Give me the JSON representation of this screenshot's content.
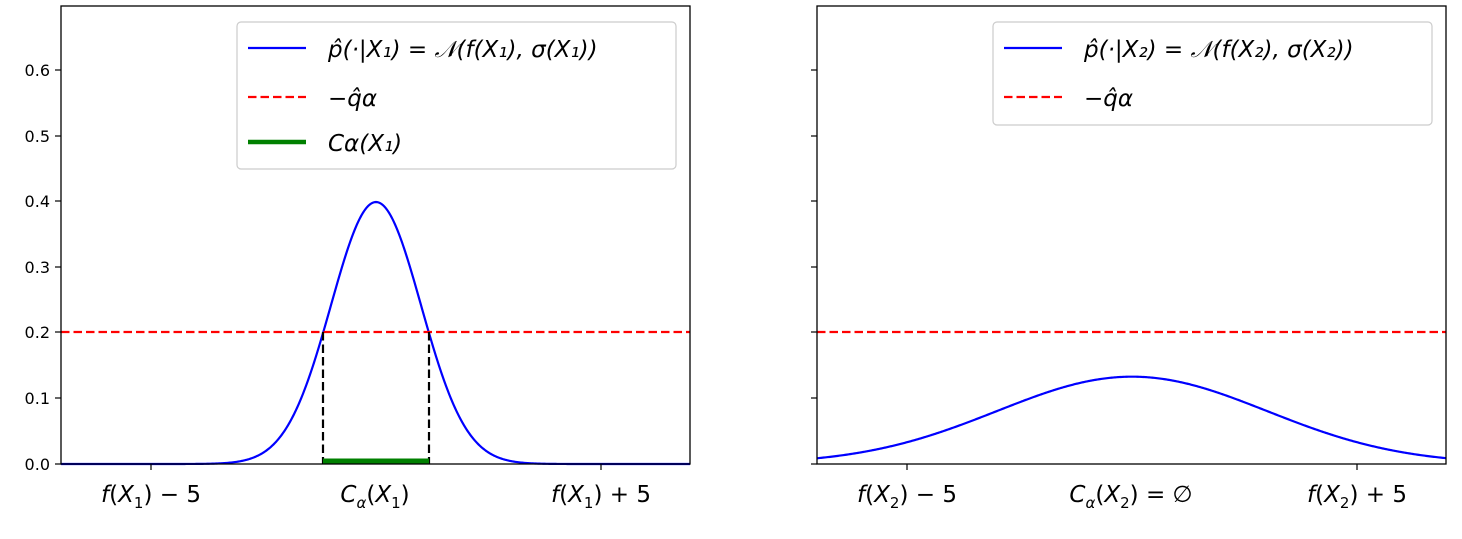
{
  "chart_data": [
    {
      "type": "line",
      "panel": "left",
      "title": "",
      "xlabel": "",
      "ylabel": "",
      "x_range": [
        -7,
        7
      ],
      "ylim": [
        0,
        0.7
      ],
      "y_ticks": [
        "0.0",
        "0.1",
        "0.2",
        "0.3",
        "0.4",
        "0.5",
        "0.6"
      ],
      "x_ticks": [
        {
          "pos": -5,
          "label": "f(X₁) − 5"
        },
        {
          "pos": 0,
          "label": "Cα(X₁)"
        },
        {
          "pos": 5,
          "label": "f(X₁) + 5"
        }
      ],
      "grid": false,
      "legend_position": "upper right",
      "series": [
        {
          "name": "p̂(·|X₁) = 𝒩(f(X₁), σ(X₁))",
          "color": "#0000ff",
          "style": "solid",
          "kind": "gaussian_pdf",
          "mean": 0,
          "sigma": 1,
          "peak": 0.399
        },
        {
          "name": "−q̂α",
          "color": "#ff0000",
          "style": "dashed",
          "kind": "hline",
          "y": 0.2
        },
        {
          "name": "Cα(X₁)",
          "color": "#008000",
          "style": "solid-thick",
          "kind": "interval",
          "x": [
            -1.177,
            1.177
          ],
          "y": 0.0
        },
        {
          "name": "cutoff markers",
          "color": "#000000",
          "style": "dashed",
          "kind": "vlines",
          "x": [
            -1.177,
            1.177
          ],
          "y_range": [
            0,
            0.2
          ]
        }
      ]
    },
    {
      "type": "line",
      "panel": "right",
      "title": "",
      "xlabel": "",
      "ylabel": "",
      "x_range": [
        -7,
        7
      ],
      "ylim": [
        0,
        0.7
      ],
      "y_ticks": [
        "",
        "",
        "",
        "",
        "",
        "",
        ""
      ],
      "shared_y": true,
      "x_ticks": [
        {
          "pos": -5,
          "label": "f(X₂) − 5"
        },
        {
          "pos": 0,
          "label": "Cα(X₂) = ∅"
        },
        {
          "pos": 5,
          "label": "f(X₂) + 5"
        }
      ],
      "grid": false,
      "legend_position": "upper right",
      "series": [
        {
          "name": "p̂(·|X₂) = 𝒩(f(X₂), σ(X₂))",
          "color": "#0000ff",
          "style": "solid",
          "kind": "gaussian_pdf",
          "mean": 0,
          "sigma": 3,
          "peak": 0.133
        },
        {
          "name": "−q̂α",
          "color": "#ff0000",
          "style": "dashed",
          "kind": "hline",
          "y": 0.2
        }
      ]
    }
  ],
  "left": {
    "y_ticks": [
      "0.0",
      "0.1",
      "0.2",
      "0.3",
      "0.4",
      "0.5",
      "0.6"
    ],
    "x_tick_labels": {
      "minus": {
        "f": "f",
        "X": "X",
        "sub": "1",
        "tail": ") − 5"
      },
      "center": {
        "C": "C",
        "alpha": "α",
        "X": "X",
        "sub": "1"
      },
      "plus": {
        "f": "f",
        "X": "X",
        "sub": "1",
        "tail": ") + 5"
      }
    },
    "legend": {
      "items": [
        {
          "label": "p̂(·|X₁) = 𝒩(f(X₁), σ(X₁))",
          "color": "#0000ff"
        },
        {
          "label": "−q̂α",
          "color": "#ff0000"
        },
        {
          "label": "Cα(X₁)",
          "color": "#008000"
        }
      ]
    }
  },
  "right": {
    "x_tick_labels": {
      "minus": {
        "f": "f",
        "X": "X",
        "sub": "2",
        "tail": ") − 5"
      },
      "center": {
        "C": "C",
        "alpha": "α",
        "X": "X",
        "sub": "2",
        "tail": ") = ∅"
      },
      "plus": {
        "f": "f",
        "X": "X",
        "sub": "2",
        "tail": ") + 5"
      }
    },
    "legend": {
      "items": [
        {
          "label": "p̂(·|X₂) = 𝒩(f(X₂), σ(X₂))",
          "color": "#0000ff"
        },
        {
          "label": "−q̂α",
          "color": "#ff0000"
        }
      ]
    }
  },
  "colors": {
    "density": "#0000ff",
    "threshold": "#ff0000",
    "interval": "#008000",
    "cutoff": "#000000",
    "legend_border": "#cccccc"
  }
}
